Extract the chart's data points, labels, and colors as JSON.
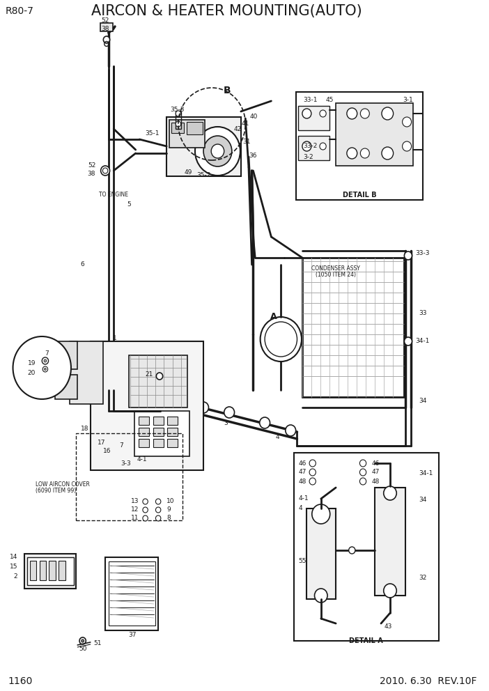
{
  "title": "AIRCON & HEATER MOUNTING(AUTO)",
  "model": "R80-7",
  "page": "1160",
  "date": "2010. 6.30  REV.10F",
  "bg_color": "#ffffff",
  "lc": "#1a1a1a",
  "gc": "#999999",
  "title_fs": 15,
  "label_fs": 7.5,
  "small_fs": 6.5,
  "tiny_fs": 5.5
}
